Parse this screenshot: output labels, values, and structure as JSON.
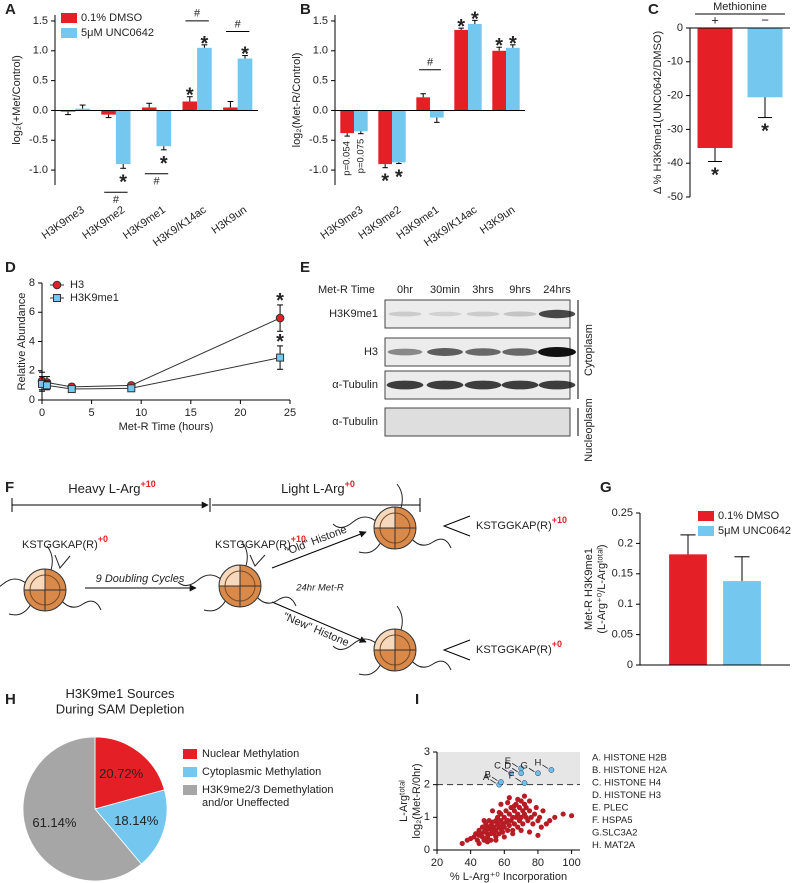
{
  "chart_data": [
    {
      "type": "bar",
      "label": "A",
      "ylabel": "log₂(+Met/Control)",
      "categories": [
        "H3K9me3",
        "H3K9me2",
        "H3K9me1",
        "H3K9/K14ac",
        "H3K9un"
      ],
      "series": [
        {
          "name": "0.1% DMSO",
          "color": "#e41f26",
          "values": [
            -0.02,
            -0.07,
            0.05,
            0.15,
            0.05
          ],
          "errors": [
            0.05,
            0.05,
            0.07,
            0.08,
            0.1
          ],
          "markers": [
            null,
            null,
            null,
            "*",
            null
          ]
        },
        {
          "name": "5μM UNC0642",
          "color": "#74c7ee",
          "values": [
            0.03,
            -0.9,
            -0.6,
            1.05,
            0.87
          ],
          "errors": [
            0.06,
            0.07,
            0.06,
            0.05,
            0.05
          ],
          "markers": [
            null,
            "*",
            "*",
            "*",
            "*"
          ]
        }
      ],
      "hash": [
        null,
        "#",
        "#",
        "#",
        "#"
      ],
      "ylim": [
        -1.25,
        1.6
      ],
      "yticks": [
        {
          "value": -1,
          "label": "-1.0"
        },
        -0.5,
        {
          "value": 0,
          "label": "0.0"
        },
        0.5,
        {
          "value": 1,
          "label": "1.0"
        },
        1.5
      ],
      "legend": "upper left"
    },
    {
      "type": "bar",
      "label": "B",
      "ylabel": "log₂(Met-R/Control)",
      "categories": [
        "H3K9me3",
        "H3K9me2",
        "H3K9me1",
        "H3K9/K14ac",
        "H3K9un"
      ],
      "series": [
        {
          "color": "#e41f26",
          "values": [
            -0.38,
            -0.9,
            0.22,
            1.35,
            1.0
          ],
          "errors": [
            0.05,
            0.06,
            0.06,
            0.03,
            0.06
          ],
          "markers": [
            "p=0.054",
            "*",
            null,
            "*",
            "*"
          ]
        },
        {
          "color": "#74c7ee",
          "values": [
            -0.35,
            -0.87,
            -0.12,
            1.45,
            1.05
          ],
          "errors": [
            0.04,
            0.02,
            0.08,
            0.06,
            0.05
          ],
          "markers": [
            "p=0.075",
            "*",
            null,
            "*",
            "*"
          ]
        }
      ],
      "hash": [
        null,
        null,
        "#",
        null,
        null
      ],
      "ylim": [
        -1.25,
        1.6
      ],
      "yticks": [
        {
          "value": -1,
          "label": "-1.0"
        },
        -0.5,
        {
          "value": 0,
          "label": "0.0"
        },
        0.5,
        {
          "value": 1,
          "label": "1.0"
        },
        1.5
      ]
    },
    {
      "type": "bar",
      "label": "C",
      "xlabel": "Methionine",
      "xaxis": "top",
      "ylabel": "Δ % H3K9me1(UNC0642/DMSO)",
      "categories": [
        "+",
        "−"
      ],
      "values": [
        -35.5,
        -20.5
      ],
      "errors": [
        4,
        6
      ],
      "colors": [
        "#e41f26",
        "#74c7ee"
      ],
      "markers": [
        "*",
        "*"
      ],
      "ylim": [
        -50,
        0
      ],
      "yticks": [
        -50,
        -40,
        -30,
        -20,
        -10,
        0
      ]
    },
    {
      "type": "line",
      "label": "D",
      "ylabel": "Relative Abundance",
      "xlabel": "Met-R Time (hours)",
      "x": [
        0,
        0.5,
        3,
        9,
        24
      ],
      "series": [
        {
          "name": "H3",
          "color": "#e41f26",
          "marker": "circle",
          "values": [
            1.3,
            1.2,
            0.9,
            1.0,
            5.6
          ],
          "errors": [
            0.6,
            0.4,
            0.2,
            0.1,
            0.9
          ],
          "markers": [
            null,
            null,
            null,
            null,
            "*"
          ]
        },
        {
          "name": "H3K9me1",
          "color": "#74c7ee",
          "marker": "square",
          "values": [
            1.1,
            1.0,
            0.75,
            0.8,
            2.9
          ],
          "errors": [
            0.5,
            0.3,
            0.15,
            0.15,
            0.8
          ],
          "markers": [
            null,
            null,
            null,
            null,
            "*"
          ]
        }
      ],
      "xlim": [
        0,
        25
      ],
      "xticks": [
        0,
        5,
        10,
        15,
        20,
        25
      ],
      "ylim": [
        0,
        8
      ],
      "yticks": [
        0,
        2,
        4,
        6,
        8
      ],
      "legend": "upper left"
    },
    {
      "type": "bar",
      "label": "G",
      "ylabel": "Met-R H3K9me1\n(L-Arg⁺⁰/L-Argᵗᵒᵗᵃˡ)",
      "categories": [
        null
      ],
      "series": [
        {
          "name": "0.1% DMSO",
          "color": "#e41f26",
          "values": [
            0.182
          ],
          "errors": [
            0.032
          ]
        },
        {
          "name": "5μM UNC0642",
          "color": "#74c7ee",
          "values": [
            0.138
          ],
          "errors": [
            0.04
          ]
        }
      ],
      "ylim": [
        0,
        0.25
      ],
      "yticks": [
        0,
        0.05,
        0.1,
        0.15,
        0.2,
        0.25
      ],
      "legend": "upper right"
    },
    {
      "type": "pie",
      "label": "H",
      "title": "H3K9me1 Sources\nDuring SAM Depletion",
      "categories": [
        "Nuclear Methylation",
        "Cytoplasmic Methylation",
        "H3K9me2/3 Demethylation\nand/or Uneffected"
      ],
      "values": [
        20.72,
        18.14,
        61.14
      ],
      "value_labels": [
        "20.72%",
        "18.14%",
        "61.14%"
      ],
      "colors": [
        "#e41f26",
        "#74c7ee",
        "#a6a6a6"
      ]
    },
    {
      "type": "scatter",
      "label": "I",
      "ylabel": "L-Argᵗᵒᵗᵃˡ\nlog₂(Met-R/0hr)",
      "xlabel": "% L-Arg⁺⁰ Incorporation",
      "threshold": 2,
      "series": [
        {
          "color": "#b71c24",
          "x": [
            38,
            40,
            42,
            43,
            44,
            45,
            45,
            46,
            47,
            47,
            48,
            48,
            49,
            49,
            50,
            50,
            50,
            51,
            51,
            52,
            52,
            52,
            53,
            53,
            54,
            54,
            55,
            55,
            55,
            56,
            56,
            57,
            57,
            58,
            58,
            58,
            59,
            59,
            60,
            60,
            61,
            61,
            62,
            62,
            63,
            63,
            64,
            64,
            65,
            65,
            66,
            66,
            67,
            67,
            68,
            68,
            69,
            69,
            70,
            70,
            71,
            71,
            72,
            72,
            73,
            73,
            74,
            75,
            75,
            76,
            77,
            78,
            79,
            80,
            81,
            82,
            83,
            85,
            87,
            90,
            45,
            50,
            55,
            60,
            65,
            70,
            75,
            80,
            95,
            100,
            35,
            48,
            53,
            58,
            63,
            68,
            72,
            62,
            57,
            66
          ],
          "y": [
            0.3,
            0.35,
            0.4,
            0.5,
            0.3,
            0.45,
            0.6,
            0.5,
            0.4,
            0.7,
            0.55,
            0.3,
            0.6,
            0.8,
            0.5,
            0.7,
            0.4,
            0.65,
            0.9,
            0.5,
            0.75,
            0.3,
            0.6,
            0.85,
            0.7,
            0.5,
            0.9,
            0.6,
            0.4,
            0.8,
            1.0,
            0.7,
            0.5,
            0.9,
            0.65,
            1.1,
            0.8,
            0.55,
            1.0,
            0.7,
            0.85,
            1.2,
            0.9,
            0.6,
            1.1,
            0.75,
            1.3,
            0.9,
            1.0,
            0.6,
            1.2,
            0.8,
            1.4,
            1.0,
            1.1,
            0.7,
            1.3,
            0.9,
            1.5,
            1.0,
            1.2,
            0.8,
            1.4,
            1.1,
            1.0,
            1.3,
            0.9,
            1.2,
            1.5,
            1.0,
            0.8,
            1.1,
            1.3,
            0.9,
            1.0,
            0.7,
            1.2,
            0.8,
            0.9,
            1.0,
            0.2,
            0.25,
            0.3,
            0.4,
            0.5,
            0.6,
            0.55,
            0.45,
            1.1,
            1.05,
            0.2,
            0.9,
            1.2,
            1.4,
            1.6,
            1.55,
            1.65,
            1.45,
            1.15,
            1.35
          ]
        },
        {
          "color": "#6ec1e8",
          "x": [
            57,
            58,
            64,
            70,
            70,
            72,
            80,
            88
          ],
          "y": [
            2.0,
            2.08,
            2.35,
            2.35,
            2.5,
            2.05,
            2.35,
            2.45
          ],
          "labels": [
            "A",
            "B",
            "C",
            "D",
            "E",
            "F",
            "G",
            "H"
          ]
        }
      ],
      "key": [
        "A. HISTONE H2B",
        "B. HISTONE H2A",
        "C. HISTONE H4",
        "D. HISTONE H3",
        "E. PLEC",
        "F. HSPA5",
        "G.SLC3A2",
        "H. MAT2A"
      ],
      "xlim": [
        20,
        105
      ],
      "xticks": [
        20,
        40,
        60,
        80,
        100
      ],
      "ylim": [
        0,
        3
      ],
      "yticks": [
        0,
        1,
        2,
        3
      ]
    }
  ],
  "blot": {
    "label": "E",
    "header": "Met-R Time",
    "columns": [
      "0hr",
      "30min",
      "3hrs",
      "9hrs",
      "24hrs"
    ],
    "rows": [
      "H3K9me1",
      "H3",
      "α-Tubulin",
      "α-Tubulin"
    ],
    "fractions": [
      "Cytoplasm",
      "Nucleoplasm"
    ]
  },
  "diagram": {
    "label": "F",
    "heavy": "Heavy L-Arg",
    "heavy_sup": "+10",
    "light": "Light L-Arg",
    "light_sup": "+0",
    "peptide": "KSTGGKAP(R)",
    "sup_light": "+0",
    "sup_heavy": "+10",
    "cycles": "9 Doubling Cycles",
    "metr": "24hr Met-R",
    "old": "\"Old\" Histone",
    "new": "\"New\" Histone"
  }
}
